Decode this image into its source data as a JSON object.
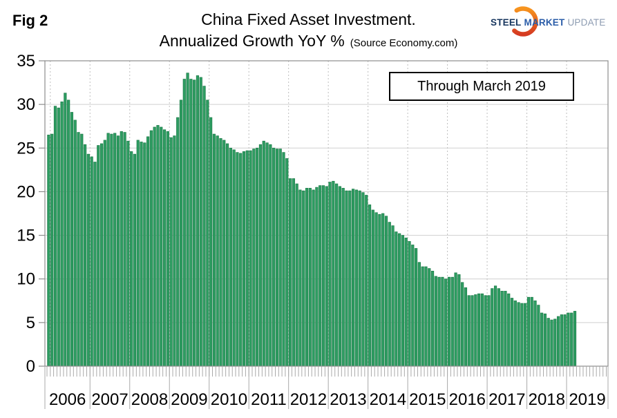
{
  "header": {
    "fig_label": "Fig 2",
    "title_line1": "China Fixed Asset Investment.",
    "title_line2": "Annualized Growth YoY %",
    "source_note": "(Source Economy.com)"
  },
  "logo": {
    "word1": "STEEL",
    "word2": "MARKET",
    "word3": "UPDATE",
    "colors": {
      "word1": "#16355e",
      "word2": "#2a5ca8",
      "word3": "#8c9bb1",
      "arc_top": "#F7941E",
      "arc_bottom": "#D53A21"
    }
  },
  "annotation": {
    "label": "Through March 2019"
  },
  "chart_data": {
    "type": "bar",
    "title": "China Fixed Asset Investment. Annualized Growth YoY %",
    "source": "Economy.com",
    "ylabel": "",
    "xlabel": "",
    "ylim": [
      0,
      35
    ],
    "y_ticks": [
      0,
      5,
      10,
      15,
      20,
      25,
      30,
      35
    ],
    "x_year_labels": [
      "2006",
      "2007",
      "2008",
      "2009",
      "2010",
      "2011",
      "2012",
      "2013",
      "2014",
      "2015",
      "2016",
      "2017",
      "2018",
      "2019"
    ],
    "start_month": "Dec 2005",
    "end_month": "Mar 2019",
    "frequency": "monthly",
    "grid": true,
    "bar_color": "#2E9D62",
    "bar_edge_color": "#1E7B49",
    "gridline_color": "#cfcfcf",
    "year_gridline_color": "#bdbdbd",
    "axis_color": "#8c8c8c",
    "tick_color": "#a9a9a9",
    "values_by_year": [
      {
        "year": 2005,
        "first_month": "Dec",
        "values": [
          26.5
        ]
      },
      {
        "year": 2006,
        "values": [
          26.6,
          29.8,
          29.6,
          30.3,
          31.3,
          30.5,
          29.1,
          28.2,
          26.8,
          26.6,
          25.4,
          24.3
        ]
      },
      {
        "year": 2007,
        "values": [
          24.0,
          23.4,
          25.3,
          25.5,
          25.9,
          26.7,
          26.6,
          26.7,
          26.4,
          26.9,
          26.8,
          25.8
        ]
      },
      {
        "year": 2008,
        "values": [
          24.6,
          24.3,
          25.9,
          25.7,
          25.6,
          26.3,
          27.0,
          27.4,
          27.6,
          27.4,
          27.1,
          26.9
        ]
      },
      {
        "year": 2009,
        "values": [
          26.2,
          26.4,
          28.5,
          30.5,
          32.9,
          33.6,
          32.9,
          32.8,
          33.3,
          33.1,
          32.1,
          30.5
        ]
      },
      {
        "year": 2010,
        "values": [
          28.5,
          26.6,
          26.4,
          26.1,
          25.9,
          25.5,
          25.0,
          24.8,
          24.5,
          24.4,
          24.6,
          24.7
        ]
      },
      {
        "year": 2011,
        "values": [
          24.7,
          24.9,
          25.0,
          25.4,
          25.8,
          25.6,
          25.4,
          25.0,
          24.9,
          24.9,
          24.5,
          23.8
        ]
      },
      {
        "year": 2012,
        "values": [
          21.5,
          21.5,
          20.9,
          20.2,
          20.1,
          20.4,
          20.4,
          20.2,
          20.5,
          20.7,
          20.7,
          20.6
        ]
      },
      {
        "year": 2013,
        "values": [
          21.1,
          21.2,
          20.9,
          20.6,
          20.4,
          20.1,
          20.1,
          20.3,
          20.2,
          20.1,
          19.9,
          19.6
        ]
      },
      {
        "year": 2014,
        "values": [
          18.5,
          17.9,
          17.6,
          17.4,
          17.5,
          17.2,
          16.5,
          16.1,
          15.4,
          15.2,
          15.0,
          14.7
        ]
      },
      {
        "year": 2015,
        "values": [
          14.3,
          13.9,
          13.5,
          11.9,
          11.4,
          11.4,
          11.2,
          10.9,
          10.3,
          10.2,
          10.2,
          10.0
        ]
      },
      {
        "year": 2016,
        "values": [
          10.2,
          10.2,
          10.7,
          10.5,
          9.6,
          9.0,
          8.1,
          8.1,
          8.2,
          8.3,
          8.3,
          8.1
        ]
      },
      {
        "year": 2017,
        "values": [
          8.1,
          8.9,
          9.2,
          8.9,
          8.6,
          8.6,
          8.3,
          7.8,
          7.5,
          7.3,
          7.2,
          7.2
        ]
      },
      {
        "year": 2018,
        "values": [
          7.9,
          7.9,
          7.5,
          7.0,
          6.1,
          6.0,
          5.5,
          5.3,
          5.4,
          5.7,
          5.9,
          5.9
        ]
      },
      {
        "year": 2019,
        "values": [
          6.1,
          6.1,
          6.3
        ]
      }
    ]
  }
}
